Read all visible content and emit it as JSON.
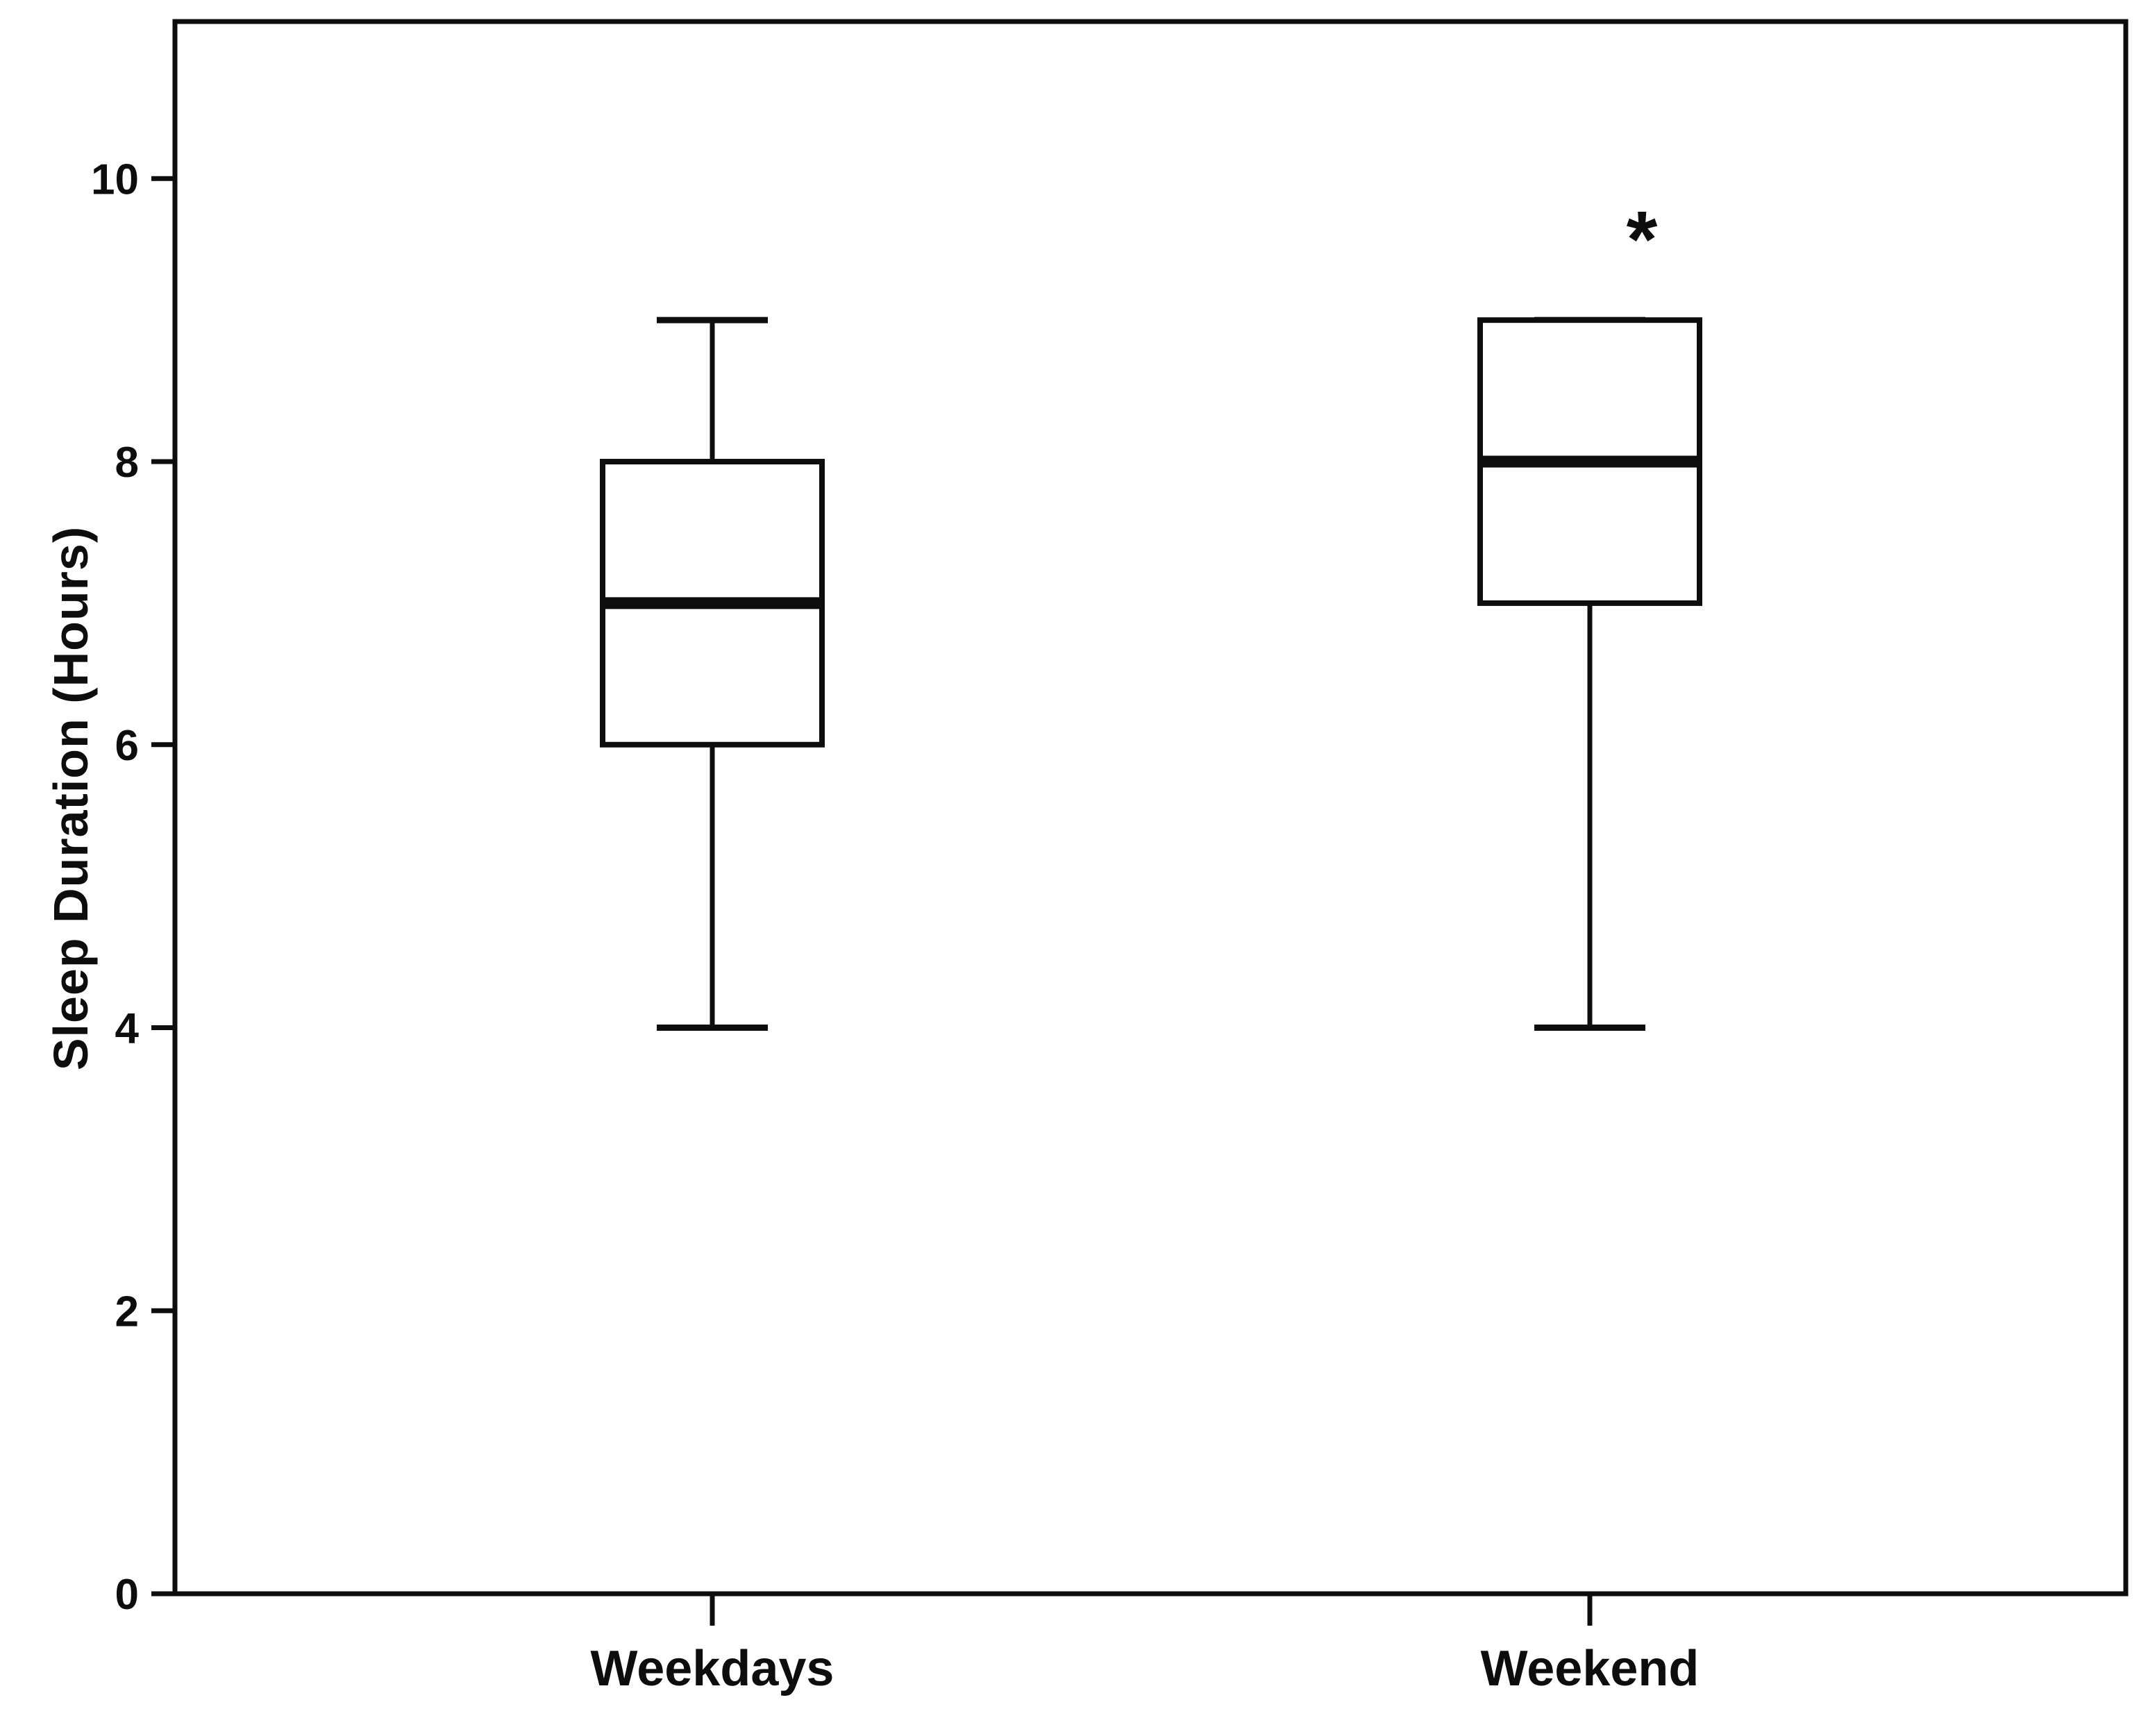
{
  "figure": {
    "background_color": "#ffffff",
    "line_color": "#0d0d0d"
  },
  "chart_data": {
    "type": "boxplot",
    "title": "",
    "xlabel": "",
    "ylabel": "Sleep Duration (Hours)",
    "ylim": [
      0,
      11.11
    ],
    "yticks": [
      0,
      2,
      4,
      6,
      8,
      10
    ],
    "grid": false,
    "legend": false,
    "categories": [
      "Weekdays",
      "Weekend"
    ],
    "series": [
      {
        "name": "Weekdays",
        "min": 4,
        "q1": 6,
        "median": 7,
        "q3": 8,
        "max": 9,
        "outliers": []
      },
      {
        "name": "Weekend",
        "min": 4,
        "q1": 7,
        "median": 8,
        "q3": 9,
        "max": 9,
        "outliers": []
      }
    ],
    "annotations": [
      {
        "text": "*",
        "category": "Weekend",
        "value": 9.65
      }
    ]
  }
}
